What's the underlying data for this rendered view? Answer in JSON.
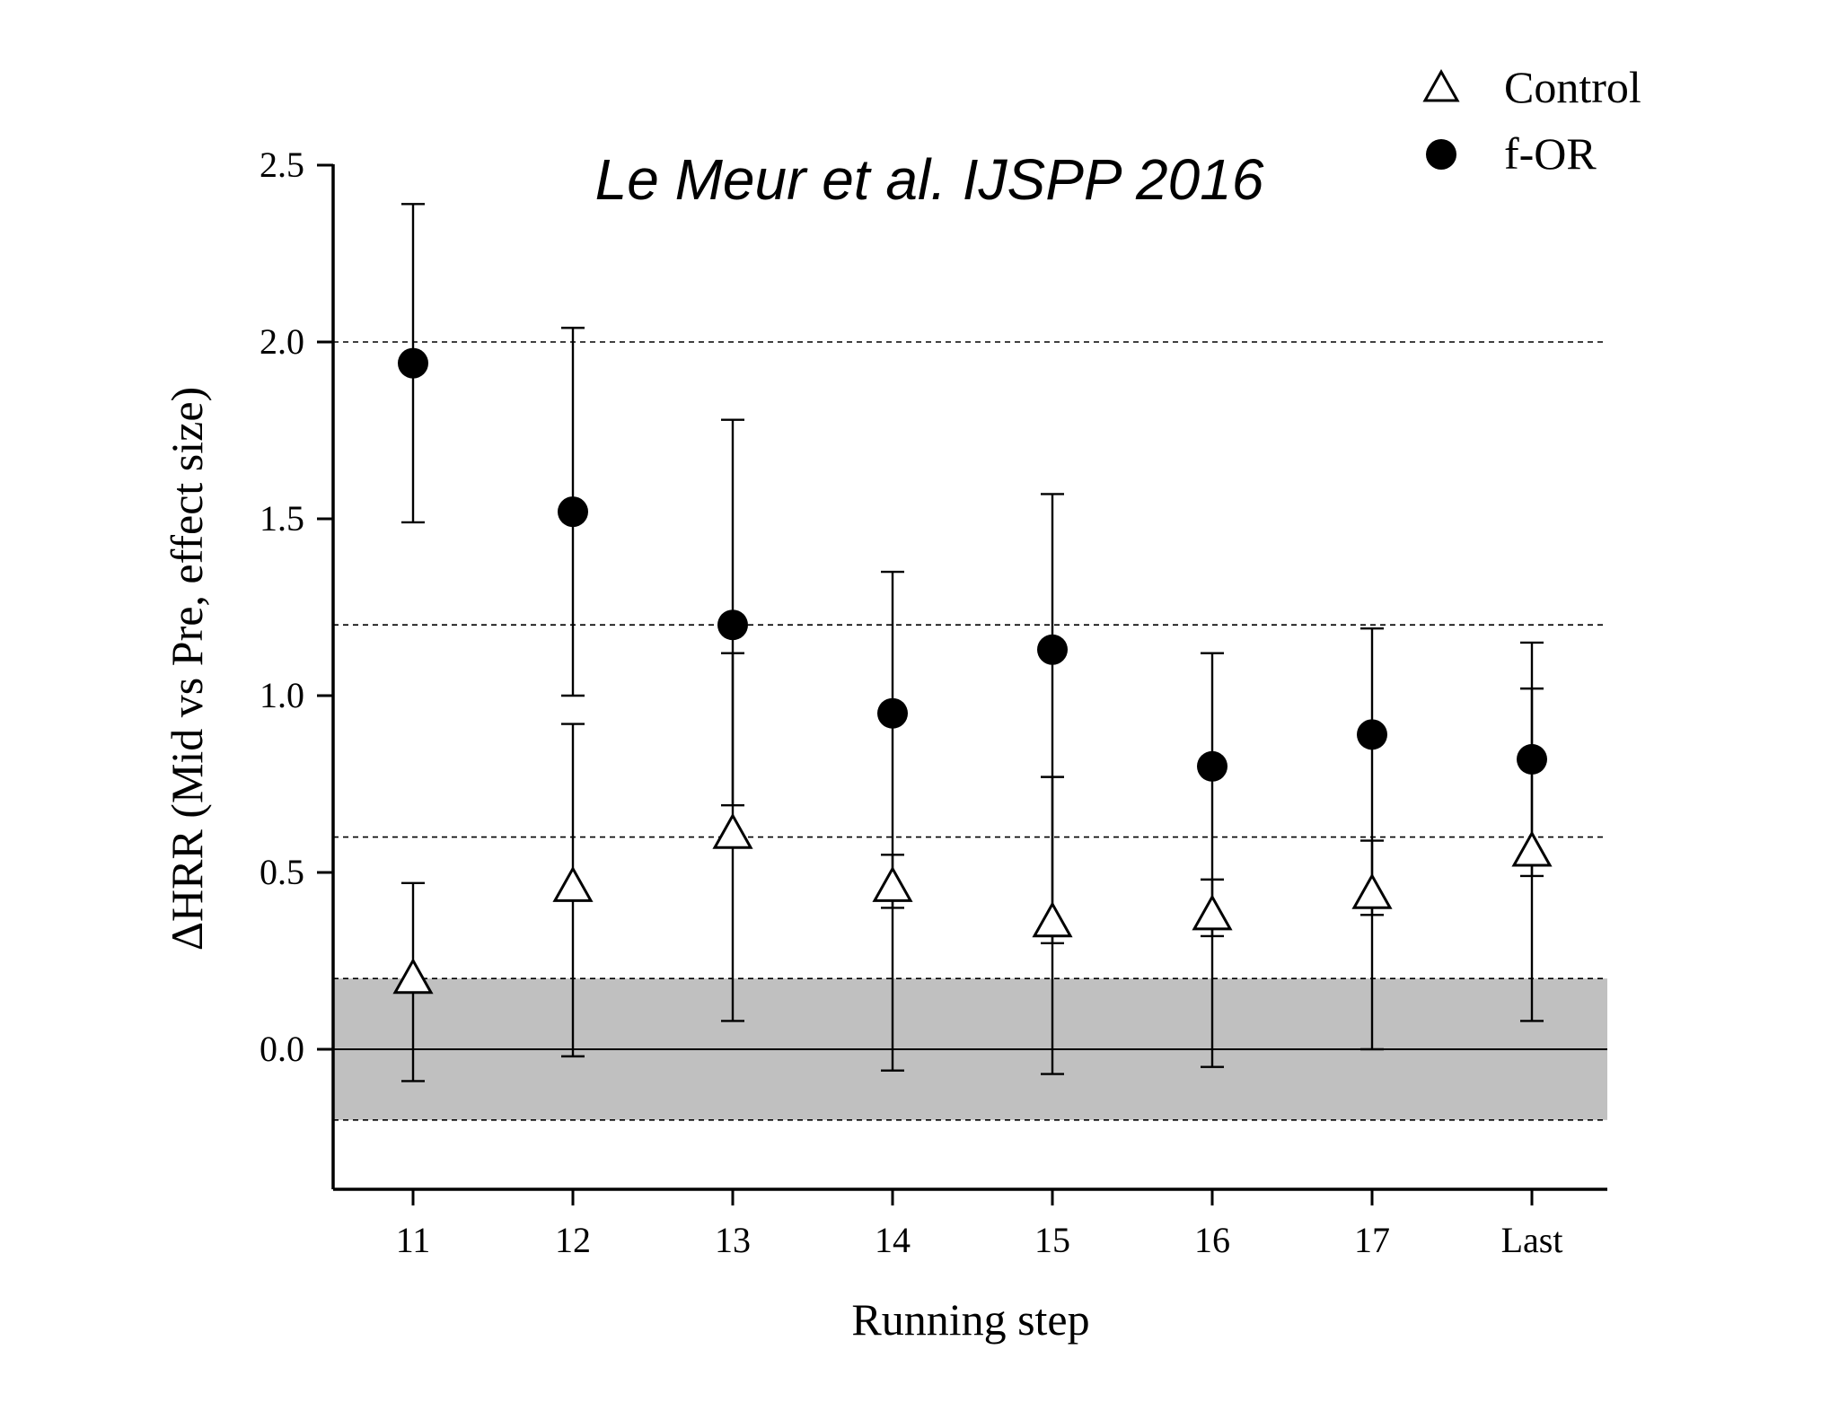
{
  "chart_data": {
    "type": "scatter",
    "title": "Le Meur et al. IJSPP 2016",
    "xlabel": "Running step",
    "ylabel": "ΔHRR (Mid vs Pre, effect size)",
    "categories": [
      "11",
      "12",
      "13",
      "14",
      "15",
      "16",
      "17",
      "Last"
    ],
    "ylim": [
      -0.4,
      2.5
    ],
    "yticks": [
      "0.0",
      "0.5",
      "1.0",
      "1.5",
      "2.0",
      "2.5"
    ],
    "reference_lines": [
      -0.2,
      0.2,
      0.6,
      1.2,
      2.0
    ],
    "zero_line": 0,
    "shaded_band": [
      -0.2,
      0.2
    ],
    "grid": false,
    "legend_position": "top-right",
    "series": [
      {
        "name": "Control",
        "marker": "open-triangle",
        "values": [
          0.2,
          0.46,
          0.61,
          0.46,
          0.36,
          0.38,
          0.44,
          0.56
        ],
        "error_low": [
          -0.09,
          -0.02,
          0.08,
          -0.06,
          -0.07,
          -0.05,
          0.0,
          0.08
        ],
        "error_high": [
          0.47,
          0.92,
          1.12,
          0.55,
          0.77,
          0.48,
          0.59,
          1.02
        ]
      },
      {
        "name": "f-OR",
        "marker": "filled-circle",
        "values": [
          1.94,
          1.52,
          1.2,
          0.95,
          1.13,
          0.8,
          0.89,
          0.82
        ],
        "error_low": [
          1.49,
          1.0,
          0.69,
          0.4,
          0.3,
          0.32,
          0.38,
          0.49
        ],
        "error_high": [
          2.39,
          2.04,
          1.78,
          1.35,
          1.57,
          1.12,
          1.19,
          1.15
        ]
      }
    ],
    "colors": {
      "shade": "#c0c0c0",
      "ink": "#000000",
      "marker_fill_open": "#ffffff"
    }
  }
}
